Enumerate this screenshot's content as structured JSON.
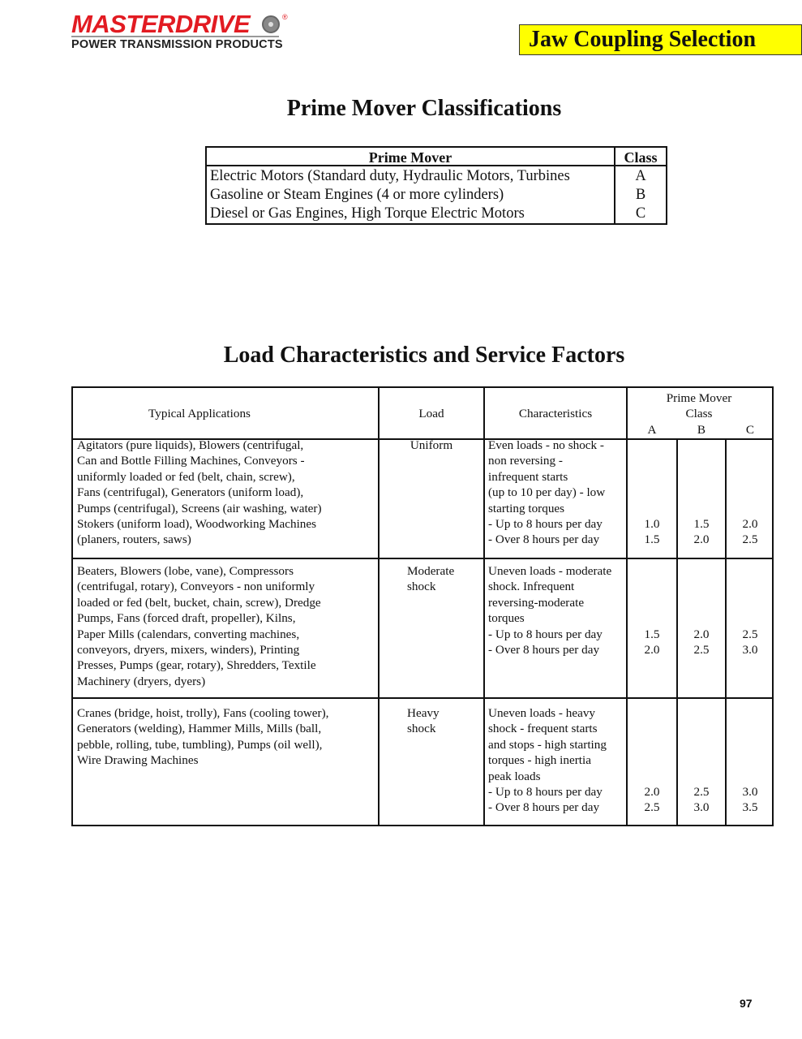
{
  "logo": {
    "brand": "MASTERDRIVE",
    "tagline": "POWER TRANSMISSION PRODUCTS",
    "colors": {
      "brand": "#e21b22"
    }
  },
  "banner": {
    "title": "Jaw Coupling Selection",
    "color": "#ffff00"
  },
  "prime_mover": {
    "heading": "Prime Mover Classifications",
    "headers": [
      "Prime Mover",
      "Class"
    ],
    "rows": [
      {
        "mover": "Electric Motors (Standard duty, Hydraulic Motors, Turbines",
        "class": "A"
      },
      {
        "mover": "Gasoline or Steam Engines (4 or more cylinders)",
        "class": "B"
      },
      {
        "mover": "Diesel or Gas Engines, High Torque Electric Motors",
        "class": "C"
      }
    ]
  },
  "load": {
    "heading": "Load Characteristics and Service Factors",
    "headers": {
      "applications": "Typical Applications",
      "load": "Load",
      "characteristics": "Characteristics",
      "prime_mover": "Prime Mover\nClass",
      "a": "A",
      "b": "B",
      "c": "C"
    },
    "rows": [
      {
        "applications": "Agitators (pure liquids), Blowers (centrifugal,\nCan and Bottle Filling Machines, Conveyors -\nuniformly loaded or fed (belt, chain, screw),\nFans (centrifugal), Generators (uniform load),\nPumps (centrifugal), Screens (air washing, water)\nStokers (uniform load), Woodworking Machines\n(planers, routers, saws)",
        "load": "Uniform",
        "characteristics": "Even loads - no shock -\nnon reversing -\ninfrequent starts\n(up to 10 per day) - low\nstarting torques\n- Up to 8 hours per day\n- Over 8 hours per day",
        "a": "1.0\n1.5",
        "b": "1.5\n2.0",
        "c": "2.0\n2.5"
      },
      {
        "applications": "Beaters, Blowers (lobe, vane), Compressors\n(centrifugal, rotary), Conveyors - non uniformly\nloaded or fed (belt, bucket, chain, screw), Dredge\nPumps, Fans (forced draft, propeller), Kilns,\nPaper Mills (calendars, converting machines,\nconveyors, dryers, mixers, winders), Printing\nPresses, Pumps (gear, rotary), Shredders, Textile\nMachinery (dryers, dyers)",
        "load": "Moderate\nshock",
        "characteristics": "Uneven loads - moderate\nshock. Infrequent\nreversing-moderate\ntorques\n- Up to 8 hours per day\n- Over 8 hours per day",
        "a": "1.5\n2.0",
        "b": "2.0\n2.5",
        "c": "2.5\n3.0"
      },
      {
        "applications": "Cranes (bridge, hoist, trolly), Fans (cooling tower),\nGenerators (welding), Hammer Mills, Mills (ball,\npebble, rolling, tube, tumbling), Pumps (oil well),\nWire Drawing Machines",
        "load": "Heavy\nshock",
        "characteristics": "Uneven loads - heavy\nshock - frequent starts\nand stops - high starting\ntorques - high inertia\npeak loads\n- Up to 8 hours per day\n- Over 8 hours per day",
        "a": "2.0\n2.5",
        "b": "2.5\n3.0",
        "c": "3.0\n3.5"
      }
    ]
  },
  "page_number": "97"
}
